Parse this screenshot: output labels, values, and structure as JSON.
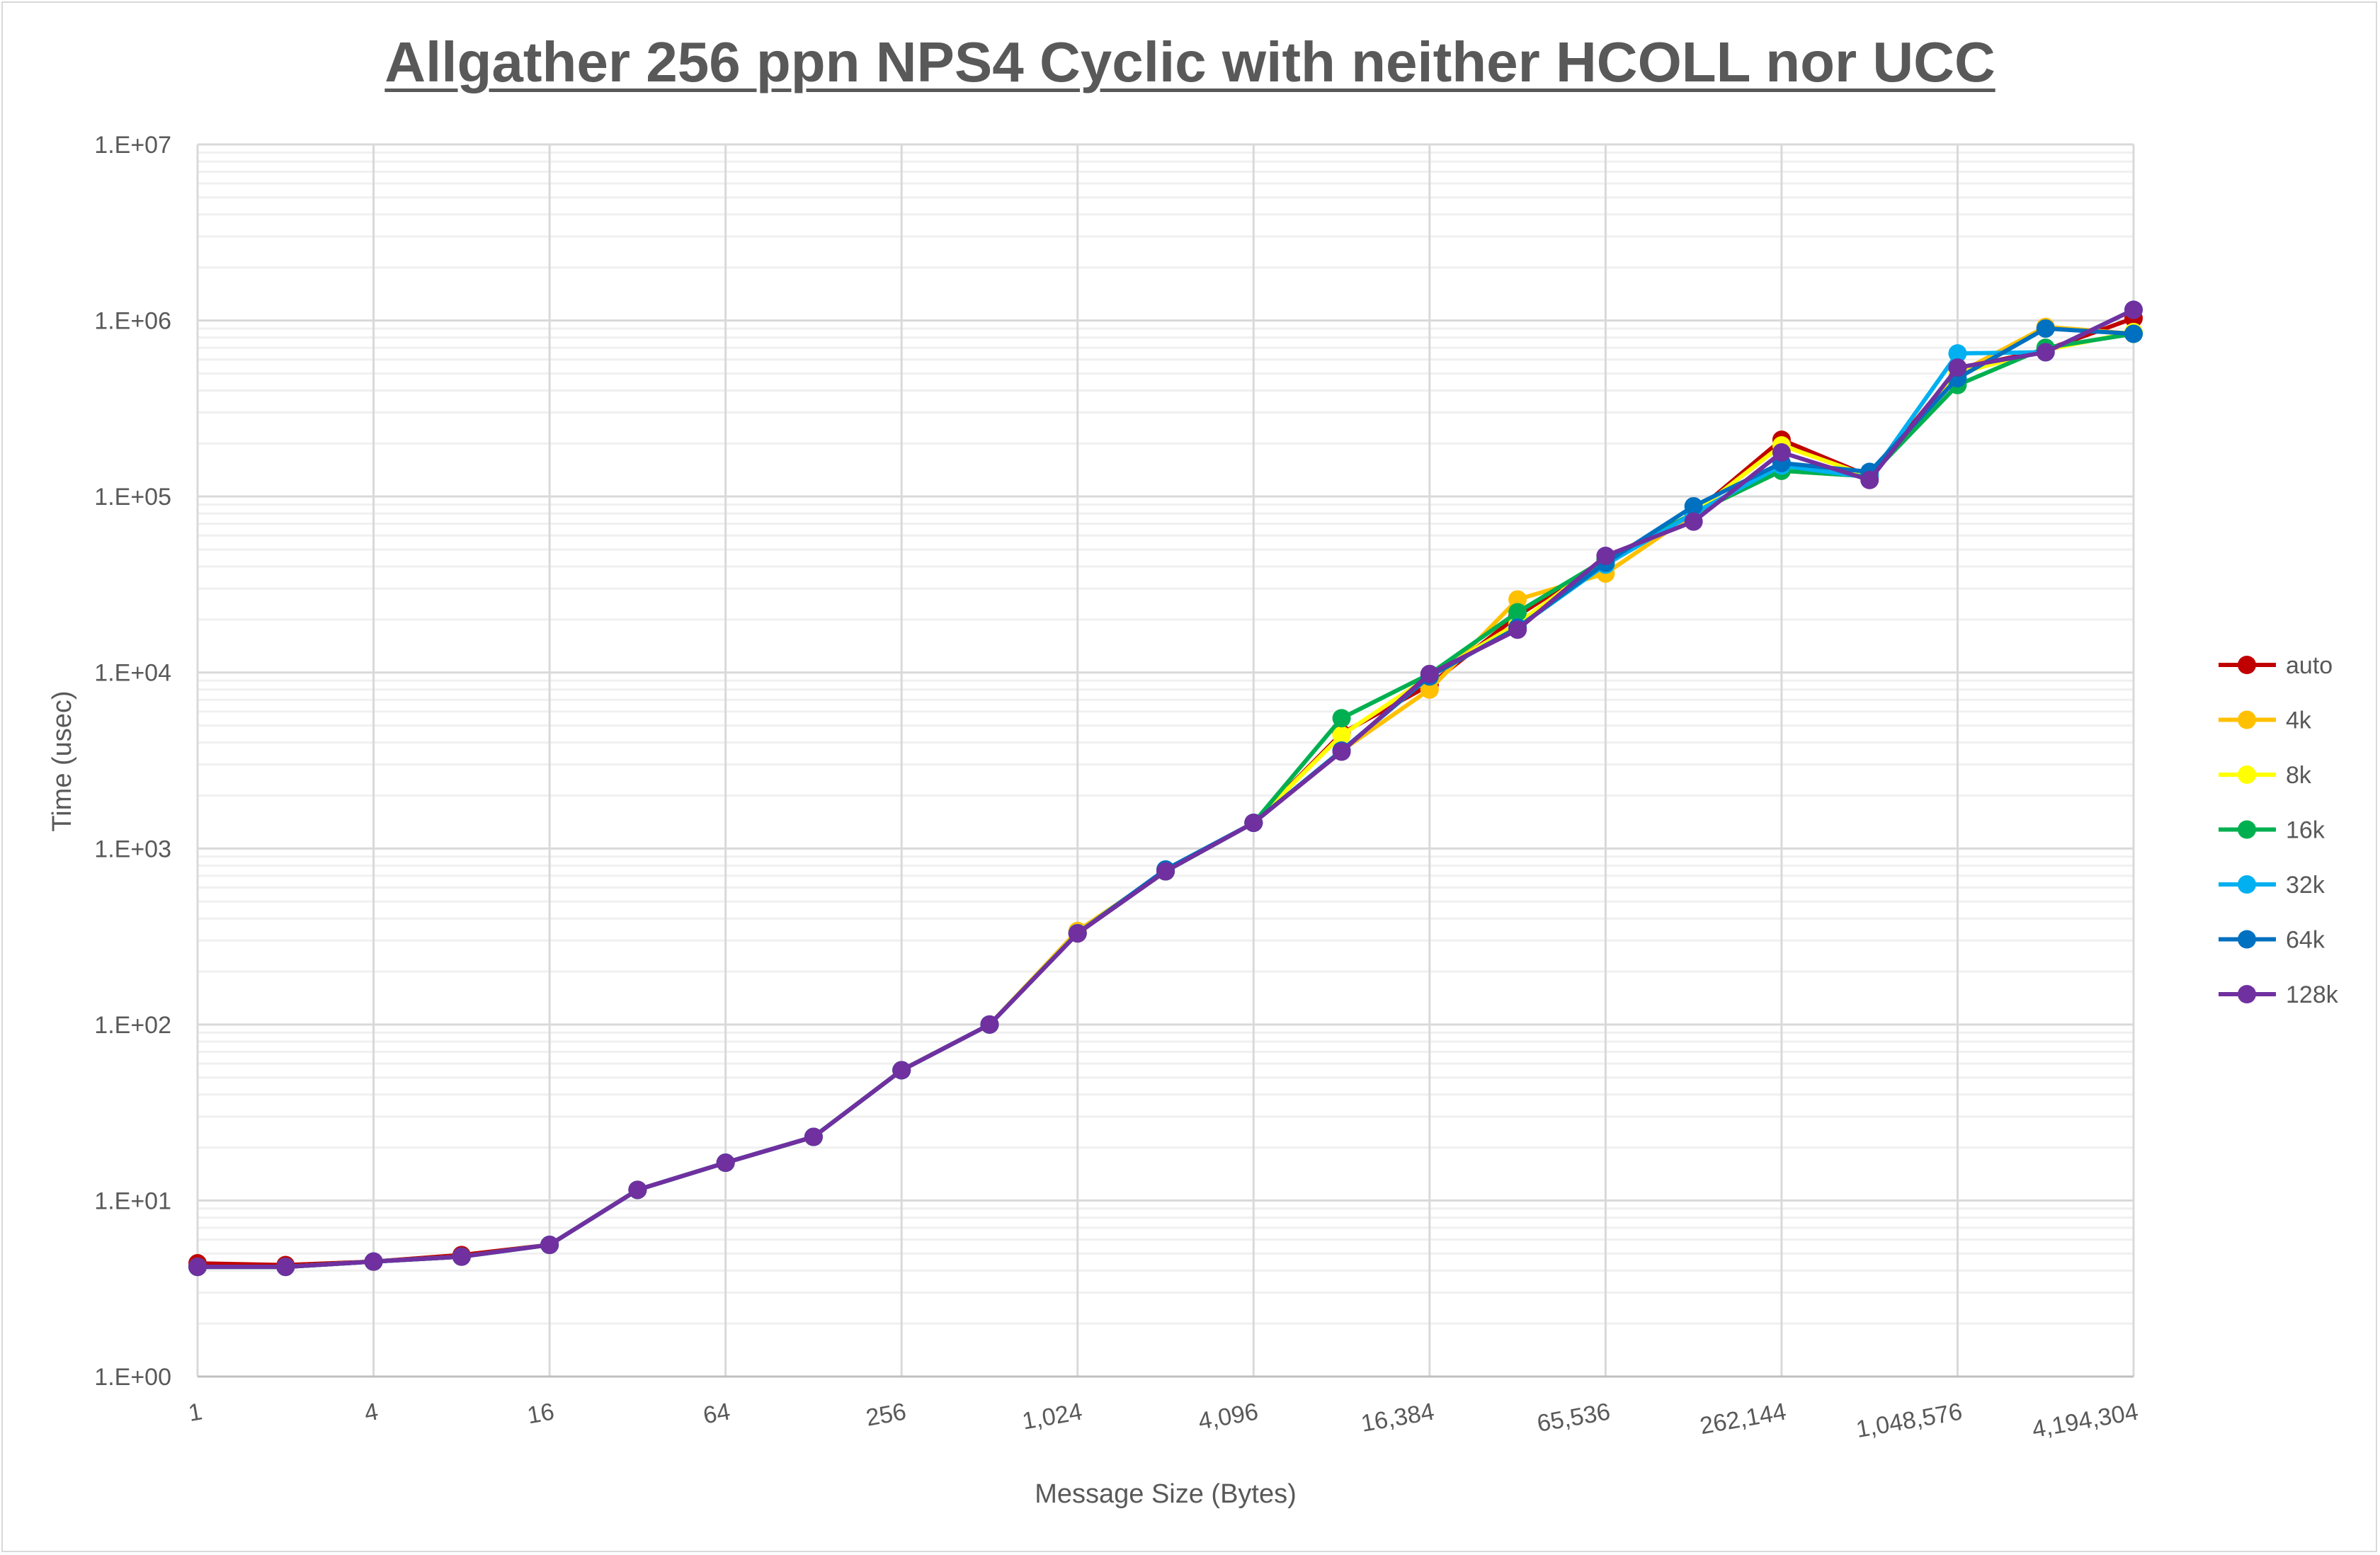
{
  "chart_data": {
    "type": "line",
    "title": "Allgather 256 ppn NPS4 Cyclic with neither HCOLL nor UCC",
    "xlabel": "Message Size (Bytes)",
    "ylabel": "Time (usec)",
    "xscale": "log2",
    "yscale": "log10",
    "xlim": [
      1,
      4194304
    ],
    "ylim": [
      1,
      10000000
    ],
    "grid": true,
    "legend": "right",
    "x": [
      1,
      2,
      4,
      8,
      16,
      32,
      64,
      128,
      256,
      512,
      1024,
      2048,
      4096,
      8192,
      16384,
      32768,
      65536,
      131072,
      262144,
      524288,
      1048576,
      2097152,
      4194304
    ],
    "x_tick_labels": [
      "1",
      "4",
      "16",
      "64",
      "256",
      "1,024",
      "4,096",
      "16,384",
      "65,536",
      "262,144",
      "1,048,576",
      "4,194,304"
    ],
    "y_tick_labels": [
      "1.E+00",
      "1.E+01",
      "1.E+02",
      "1.E+03",
      "1.E+04",
      "1.E+05",
      "1.E+06",
      "1.E+07"
    ],
    "series": [
      {
        "name": "auto",
        "color": "#c00000",
        "values": [
          4.4,
          4.3,
          4.5,
          4.9,
          5.6,
          11.5,
          16.4,
          23,
          55,
          100,
          330,
          742,
          1400,
          4500,
          8500,
          21000,
          44000,
          80000,
          210000,
          130000,
          530000,
          680000,
          1030000
        ]
      },
      {
        "name": "4k",
        "color": "#ffc000",
        "values": [
          4.2,
          4.2,
          4.5,
          4.8,
          5.6,
          11.5,
          16.4,
          23,
          55,
          100,
          340,
          742,
          1400,
          3600,
          8000,
          26000,
          36500,
          80000,
          140000,
          130000,
          500000,
          920000,
          840000
        ]
      },
      {
        "name": "8k",
        "color": "#ffff00",
        "values": [
          4.2,
          4.2,
          4.5,
          4.8,
          5.6,
          11.5,
          16.4,
          23,
          55,
          100,
          330,
          742,
          1400,
          4400,
          9500,
          19000,
          44000,
          80000,
          195000,
          130000,
          500000,
          680000,
          860000
        ]
      },
      {
        "name": "16k",
        "color": "#00b050",
        "values": [
          4.2,
          4.2,
          4.5,
          4.8,
          5.6,
          11.5,
          16.4,
          23,
          55,
          100,
          330,
          742,
          1400,
          5500,
          9800,
          22000,
          44000,
          80000,
          140000,
          130000,
          430000,
          700000,
          840000
        ]
      },
      {
        "name": "32k",
        "color": "#00b0f0",
        "values": [
          4.2,
          4.2,
          4.5,
          4.8,
          5.6,
          11.5,
          16.4,
          23,
          55,
          100,
          330,
          742,
          1400,
          3600,
          9500,
          18000,
          41000,
          80000,
          150000,
          128000,
          650000,
          660000,
          1150000
        ]
      },
      {
        "name": "64k",
        "color": "#0070c0",
        "values": [
          4.2,
          4.2,
          4.5,
          4.8,
          5.6,
          11.5,
          16.4,
          23,
          55,
          100,
          330,
          760,
          1400,
          3600,
          9500,
          18000,
          42000,
          88000,
          155000,
          138000,
          470000,
          900000,
          840000
        ]
      },
      {
        "name": "128k",
        "color": "#7030a0",
        "values": [
          4.2,
          4.2,
          4.5,
          4.8,
          5.6,
          11.5,
          16.4,
          23,
          55,
          100,
          329,
          742,
          1400,
          3550,
          9800,
          17500,
          46000,
          72000,
          178000,
          124000,
          540000,
          660000,
          1150000
        ]
      }
    ]
  }
}
